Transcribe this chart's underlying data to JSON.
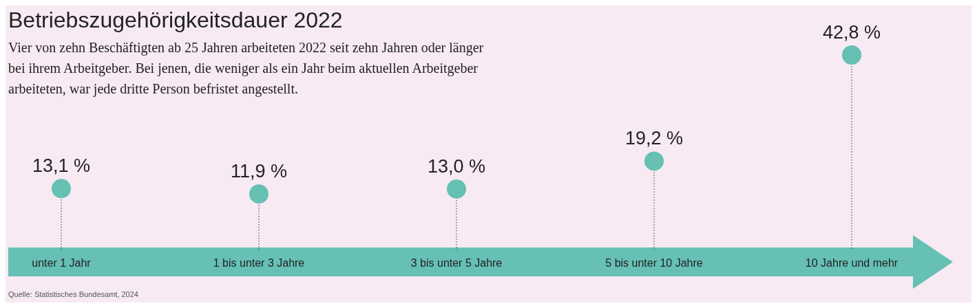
{
  "chart_data": {
    "type": "lollipop",
    "title": "Betriebszugehörigkeitsdauer 2022",
    "subtitle": "Vier von zehn Beschäftigten ab 25 Jahren arbeiteten 2022 seit zehn Jahren oder länger\nbei ihrem Arbeitgeber. Bei jenen, die weniger als ein Jahr beim aktuellen Arbeitgeber\narbeiteten, war jede dritte Person befristet angestellt.",
    "categories": [
      "unter 1 Jahr",
      "1 bis unter 3 Jahre",
      "3 bis unter 5 Jahre",
      "5 bis unter 10 Jahre",
      "10 Jahre und mehr"
    ],
    "values": [
      13.1,
      11.9,
      13.0,
      19.2,
      42.8
    ],
    "value_labels": [
      "13,1 %",
      "11,9 %",
      "13,0 %",
      "19,2 %",
      "42,8 %"
    ],
    "color": "#66c0b4",
    "marker": "circle",
    "line_style": "dotted",
    "annotations": [
      "Quelle: Statistisches Bundesamt, 2024"
    ]
  }
}
